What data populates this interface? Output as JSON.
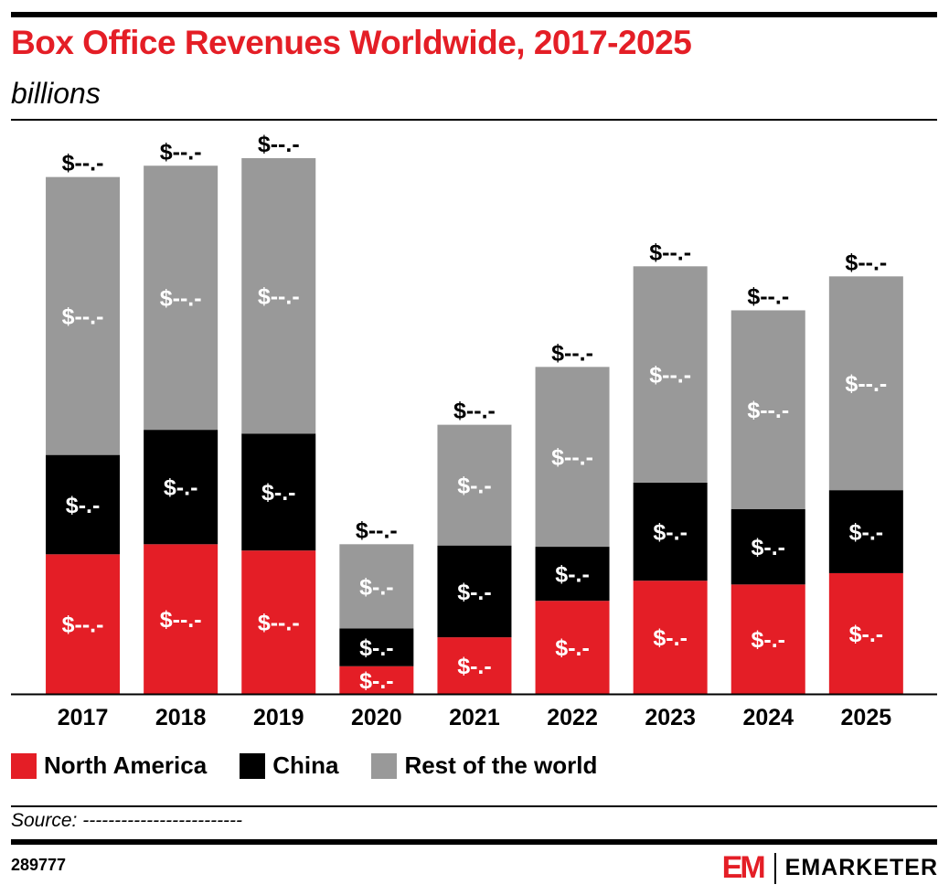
{
  "header": {
    "title": "Box Office Revenues Worldwide, 2017-2025",
    "subtitle": "billions"
  },
  "chart_data": {
    "type": "bar",
    "stacked": true,
    "title": "Box Office Revenues Worldwide, 2017-2025",
    "subtitle": "billions",
    "categories": [
      "2017",
      "2018",
      "2019",
      "2020",
      "2021",
      "2022",
      "2023",
      "2024",
      "2025"
    ],
    "series": [
      {
        "name": "North America",
        "color": "#e41e26",
        "values": [
          11.1,
          11.9,
          11.4,
          2.2,
          4.5,
          7.4,
          9.0,
          8.7,
          9.6
        ],
        "labels": [
          "$--.-",
          "$--.-",
          "$--.-",
          "$-.-",
          "$-.-",
          "$-.-",
          "$-.-",
          "$-.-",
          "$-.-"
        ]
      },
      {
        "name": "China",
        "color": "#000000",
        "values": [
          7.9,
          9.1,
          9.3,
          3.0,
          7.3,
          4.3,
          7.8,
          6.0,
          6.6
        ],
        "labels": [
          "$-.-",
          "$-.-",
          "$-.-",
          "$-.-",
          "$-.-",
          "$-.-",
          "$-.-",
          "$-.-",
          "$-.-"
        ]
      },
      {
        "name": "Rest of the world",
        "color": "#999999",
        "values": [
          22.1,
          21.0,
          21.9,
          6.7,
          9.6,
          14.3,
          17.2,
          15.8,
          17.0
        ],
        "labels": [
          "$--.-",
          "$--.-",
          "$--.-",
          "$-.-",
          "$-.-",
          "$--.-",
          "$--.-",
          "$--.-",
          "$--.-"
        ]
      }
    ],
    "totals": [
      41.1,
      42.0,
      42.6,
      11.9,
      21.4,
      26.0,
      34.0,
      30.5,
      33.2
    ],
    "total_labels": [
      "$--.-",
      "$--.-",
      "$--.-",
      "$--.-",
      "$--.-",
      "$--.-",
      "$--.-",
      "$--.-",
      "$--.-"
    ],
    "ylim": [
      0,
      45
    ],
    "grid": false,
    "legend_position": "bottom-left"
  },
  "legend": {
    "items": [
      {
        "label": "North America",
        "color": "#e41e26"
      },
      {
        "label": "China",
        "color": "#000000"
      },
      {
        "label": "Rest of the world",
        "color": "#999999"
      }
    ]
  },
  "footer": {
    "source": "Source: -------------------------",
    "chart_id": "289777",
    "brand_mark": "EM",
    "brand_name": "EMARKETER"
  }
}
